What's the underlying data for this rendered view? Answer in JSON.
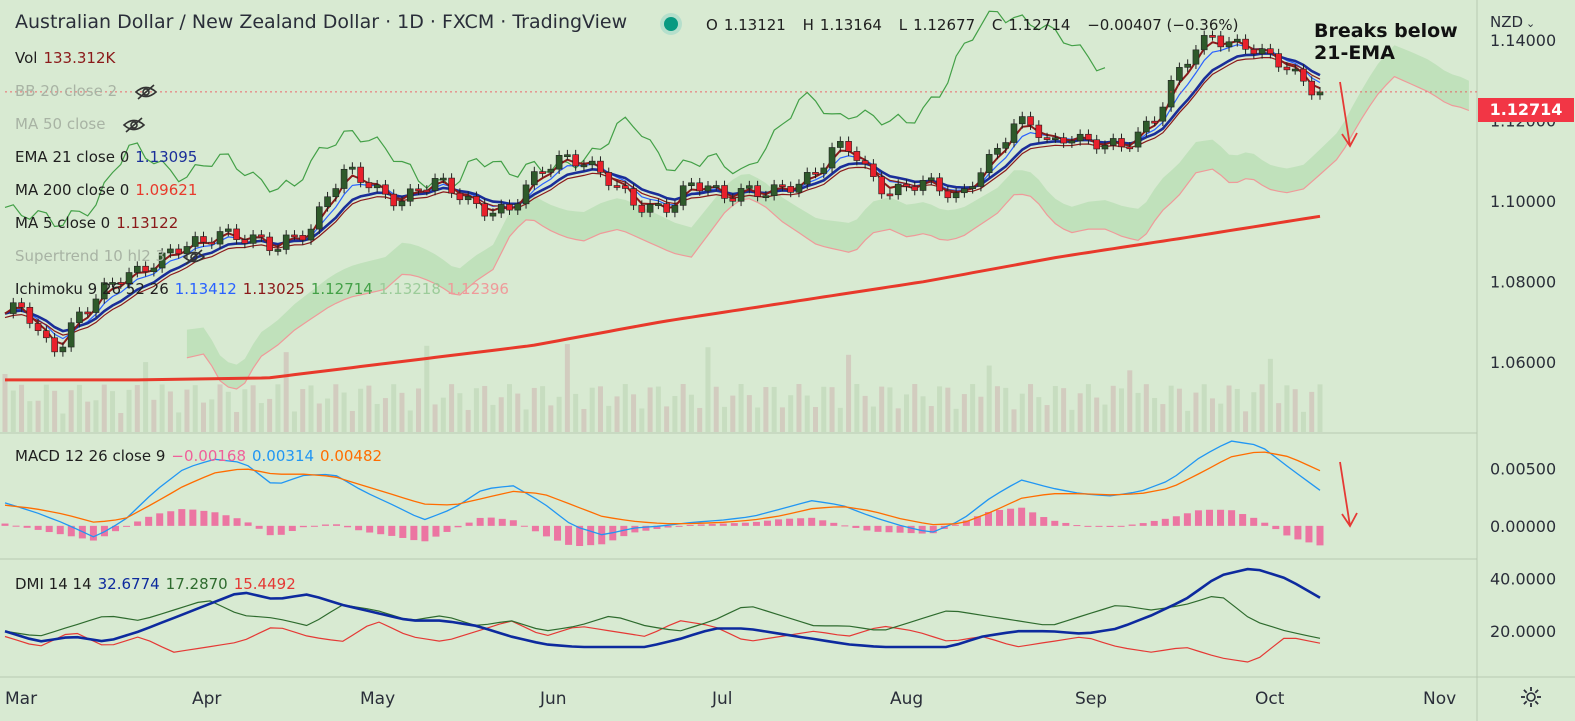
{
  "header": {
    "title": "Australian Dollar / New Zealand Dollar · 1D · FXCM · TradingView"
  },
  "ohlc": {
    "o_label": "O",
    "o": "1.13121",
    "h_label": "H",
    "h": "1.13164",
    "l_label": "L",
    "l": "1.12677",
    "c_label": "C",
    "c": "1.12714",
    "chg": "−0.00407 (−0.36%)"
  },
  "legend": {
    "vol": {
      "label": "Vol",
      "value": "133.312K"
    },
    "bb": {
      "label": "BB 20 close 2"
    },
    "ma50": {
      "label": "MA 50 close"
    },
    "ema21": {
      "label": "EMA 21 close 0",
      "value": "1.13095"
    },
    "ma200": {
      "label": "MA 200 close 0",
      "value": "1.09621"
    },
    "ma5": {
      "label": "MA 5 close 0",
      "value": "1.13122"
    },
    "supertrend": {
      "label": "Supertrend 10 hl2 3"
    },
    "ichimoku": {
      "label": "Ichimoku 9 26 52 26",
      "v1": "1.13412",
      "v2": "1.13025",
      "v3": "1.12714",
      "v4": "1.13218",
      "v5": "1.12396"
    },
    "macd": {
      "label": "MACD 12 26 close 9",
      "hist": "−0.00168",
      "macd": "0.00314",
      "signal": "0.00482"
    },
    "dmi": {
      "label": "DMI 14 14",
      "adx": "32.6774",
      "plus": "17.2870",
      "minus": "15.4492"
    }
  },
  "annotation": {
    "line1": "Breaks below",
    "line2": "21-EMA"
  },
  "price_axis": {
    "currency": "NZD",
    "last_price": "1.12714"
  },
  "colors": {
    "bg": "#d8ead2",
    "up": "#2e5a2a",
    "down": "#e8202b",
    "ema21": "#1a2e99",
    "ma200": "#e8392b",
    "ma5": "#8b1a1a",
    "tenkan": "#2962ff",
    "kijun": "#8b1a1a",
    "chikou": "#43a047",
    "cloud": "#a5d6a0",
    "macd": "#2196f3",
    "signal": "#ff6d00",
    "hist": "#f0609a",
    "adx": "#0d2a9e",
    "diplus": "#2e6b2e",
    "diminus": "#e53935"
  },
  "icons": {
    "hidden": "eye-slash-icon",
    "settings": "gear-icon",
    "dropdown": "chevron-down-icon",
    "arrow": "arrow-down-icon"
  },
  "chart_data": [
    {
      "type": "candlestick",
      "title": "Australian Dollar / New Zealand Dollar · 1D · FXCM",
      "x": [
        "Mar",
        "Apr",
        "May",
        "Jun",
        "Jul",
        "Aug",
        "Sep",
        "Oct",
        "Nov"
      ],
      "ylim": [
        1.05,
        1.148
      ],
      "y_ticks": [
        "1.06000",
        "1.08000",
        "1.10000",
        "1.12000",
        "1.14000"
      ],
      "close_path": [
        1.072,
        1.073,
        1.065,
        1.064,
        1.072,
        1.075,
        1.079,
        1.082,
        1.085,
        1.087,
        1.088,
        1.089,
        1.093,
        1.092,
        1.09,
        1.087,
        1.091,
        1.094,
        1.103,
        1.107,
        1.104,
        1.102,
        1.101,
        1.103,
        1.104,
        1.102,
        1.1,
        1.098,
        1.097,
        1.103,
        1.109,
        1.112,
        1.11,
        1.106,
        1.103,
        1.1,
        1.099,
        1.098,
        1.103,
        1.104,
        1.102,
        1.103,
        1.101,
        1.102,
        1.105,
        1.108,
        1.113,
        1.112,
        1.106,
        1.103,
        1.104,
        1.104,
        1.102,
        1.101,
        1.108,
        1.112,
        1.118,
        1.119,
        1.115,
        1.117,
        1.114,
        1.113,
        1.114,
        1.118,
        1.122,
        1.13,
        1.137,
        1.142,
        1.14,
        1.138,
        1.135,
        1.134,
        1.131,
        1.1271
      ],
      "last": {
        "open": 1.13121,
        "high": 1.13164,
        "low": 1.12677,
        "close": 1.12714,
        "change": -0.00407,
        "change_pct": -0.36
      },
      "ema21_last": 1.13095,
      "ma200_last": 1.09621,
      "ma5_last": 1.13122,
      "ma200_path": [
        1.0555,
        1.0555,
        1.056,
        1.06,
        1.064,
        1.07,
        1.075,
        1.08,
        1.086,
        1.091,
        1.0962
      ],
      "volume_last": "133.312K"
    },
    {
      "type": "line",
      "title": "MACD 12 26 close 9",
      "ylim": [
        -0.0028,
        0.008
      ],
      "y_ticks": [
        "0.00000",
        "0.00500"
      ],
      "macd": [
        0.002,
        0.0012,
        0.0002,
        -0.001,
        0.0005,
        0.003,
        0.005,
        0.0058,
        0.0055,
        0.0035,
        0.0044,
        0.0045,
        0.003,
        0.0018,
        0.0005,
        0.0015,
        0.0032,
        0.0035,
        0.002,
        0.0,
        -0.0008,
        -0.0002,
        0.0,
        0.0003,
        0.0005,
        0.0008,
        0.0015,
        0.0022,
        0.0018,
        0.0008,
        0.0,
        -0.0006,
        0.0005,
        0.0025,
        0.004,
        0.0033,
        0.0028,
        0.0026,
        0.003,
        0.004,
        0.006,
        0.0074,
        0.007,
        0.005,
        0.0031
      ],
      "signal": [
        0.0018,
        0.0015,
        0.001,
        0.0003,
        0.0006,
        0.002,
        0.0035,
        0.0046,
        0.005,
        0.0045,
        0.0045,
        0.0043,
        0.0035,
        0.0027,
        0.0019,
        0.0018,
        0.0024,
        0.003,
        0.0028,
        0.0018,
        0.0008,
        0.0004,
        0.0002,
        0.0002,
        0.0003,
        0.0005,
        0.0009,
        0.0015,
        0.0017,
        0.0013,
        0.0006,
        0.0001,
        0.0002,
        0.0012,
        0.0024,
        0.0028,
        0.0028,
        0.0027,
        0.0028,
        0.0033,
        0.0046,
        0.006,
        0.0065,
        0.006,
        0.0048
      ],
      "hist_last": -0.00168,
      "macd_last": 0.00314,
      "signal_last": 0.00482
    },
    {
      "type": "line",
      "title": "DMI 14 14",
      "ylim": [
        3,
        47
      ],
      "y_ticks": [
        "20.0000",
        "40.0000"
      ],
      "adx": [
        20,
        16,
        18,
        16,
        20,
        25,
        30,
        35,
        32,
        34,
        30,
        27,
        24,
        24,
        22,
        18,
        15,
        14,
        14,
        14,
        17,
        21,
        21,
        19,
        17,
        15,
        14,
        14,
        14,
        18,
        20,
        20,
        19,
        21,
        26,
        32,
        41,
        44,
        40,
        32.68
      ],
      "di_plus": [
        20,
        18,
        22,
        26,
        24,
        28,
        32,
        26,
        25,
        22,
        30,
        28,
        24,
        26,
        22,
        24,
        20,
        22,
        26,
        22,
        20,
        24,
        30,
        26,
        22,
        22,
        20,
        24,
        28,
        26,
        24,
        22,
        26,
        30,
        28,
        30,
        34,
        24,
        20,
        17.29
      ],
      "di_minus": [
        18,
        14,
        20,
        14,
        18,
        12,
        14,
        16,
        22,
        18,
        16,
        24,
        18,
        16,
        20,
        24,
        18,
        22,
        20,
        18,
        24,
        22,
        16,
        18,
        20,
        18,
        22,
        20,
        16,
        18,
        14,
        16,
        18,
        14,
        12,
        14,
        10,
        8,
        18,
        15.45
      ],
      "adx_last": 32.6774,
      "di_plus_last": 17.287,
      "di_minus_last": 15.4492
    }
  ]
}
